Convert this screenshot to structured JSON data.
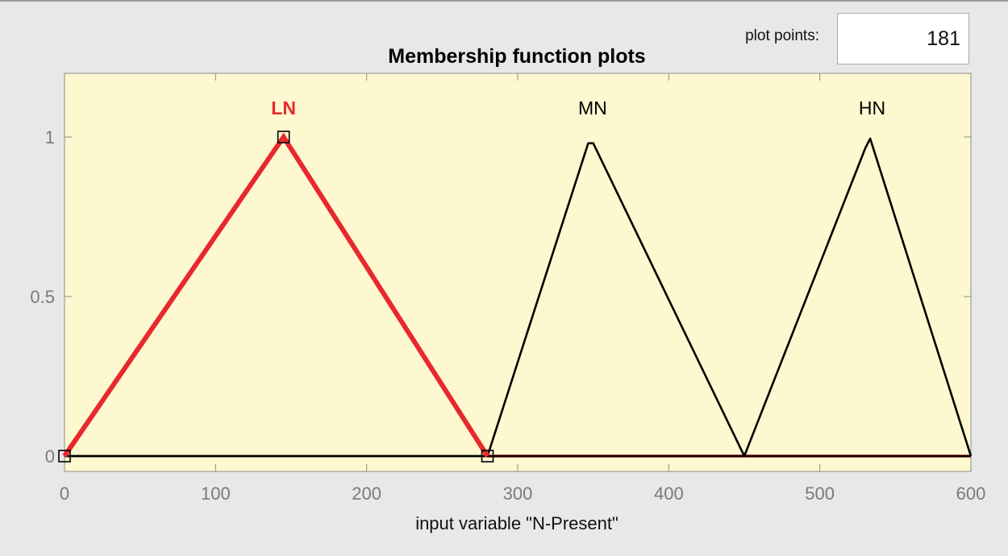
{
  "controls": {
    "plot_points_label": "plot points:",
    "plot_points_value": "181"
  },
  "colors": {
    "plot_background": "#fdf8cf",
    "selected_mf": "#e8282b",
    "mf_line": "#000000",
    "window_background": "#e8e8e8"
  },
  "chart_data": {
    "type": "line",
    "title": "Membership function plots",
    "xlabel": "input variable \"N-Present\"",
    "ylabel": "",
    "xlim": [
      0,
      600
    ],
    "ylim": [
      0,
      1.2
    ],
    "x_ticks": [
      0,
      100,
      200,
      300,
      400,
      500,
      600
    ],
    "x_tick_labels": [
      "0",
      "100",
      "200",
      "300",
      "400",
      "500",
      "600"
    ],
    "y_ticks": [
      0,
      0.5,
      1
    ],
    "y_tick_labels": [
      "0",
      "0.5",
      "1"
    ],
    "grid": false,
    "series": [
      {
        "name": "LN",
        "shape": "trimf",
        "params": [
          0,
          145,
          280
        ],
        "selected": true
      },
      {
        "name": "MN",
        "shape": "trimf",
        "params": [
          280,
          348,
          450
        ],
        "selected": false
      },
      {
        "name": "HN",
        "shape": "trimf",
        "params": [
          450,
          533,
          600
        ],
        "selected": false
      }
    ]
  }
}
